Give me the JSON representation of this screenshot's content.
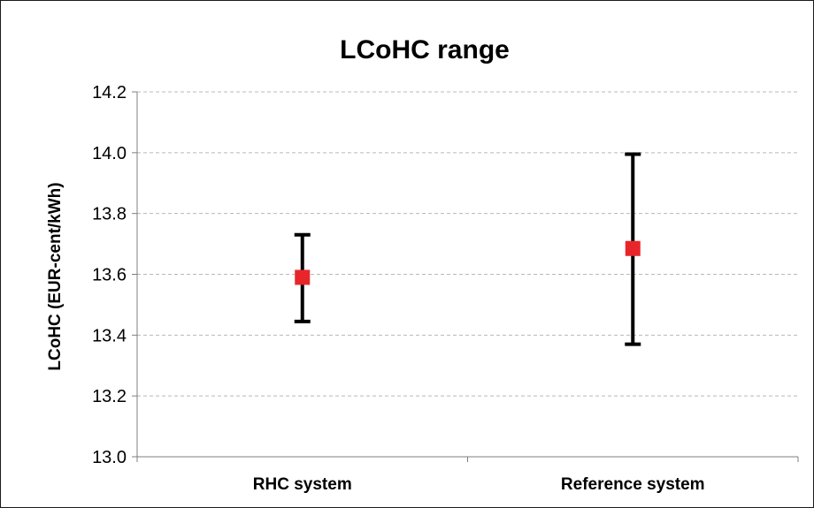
{
  "chart_data": {
    "type": "scatter",
    "title": "LCoHC range",
    "ylabel": "LCoHC  (EUR-cent/kWh)",
    "xlabel": "",
    "ylim": [
      13.0,
      14.2
    ],
    "yticks": [
      "13.0",
      "13.2",
      "13.4",
      "13.6",
      "13.8",
      "14.0",
      "14.2"
    ],
    "categories": [
      "RHC system",
      "Reference system"
    ],
    "series": [
      {
        "values": [
          13.59,
          13.685
        ],
        "error_low": [
          13.445,
          13.37
        ],
        "error_high": [
          13.73,
          13.995
        ]
      }
    ],
    "marker_color": "#e8262a",
    "errorbar_color": "#000000",
    "grid": "horizontal dashed",
    "legend": "none"
  }
}
